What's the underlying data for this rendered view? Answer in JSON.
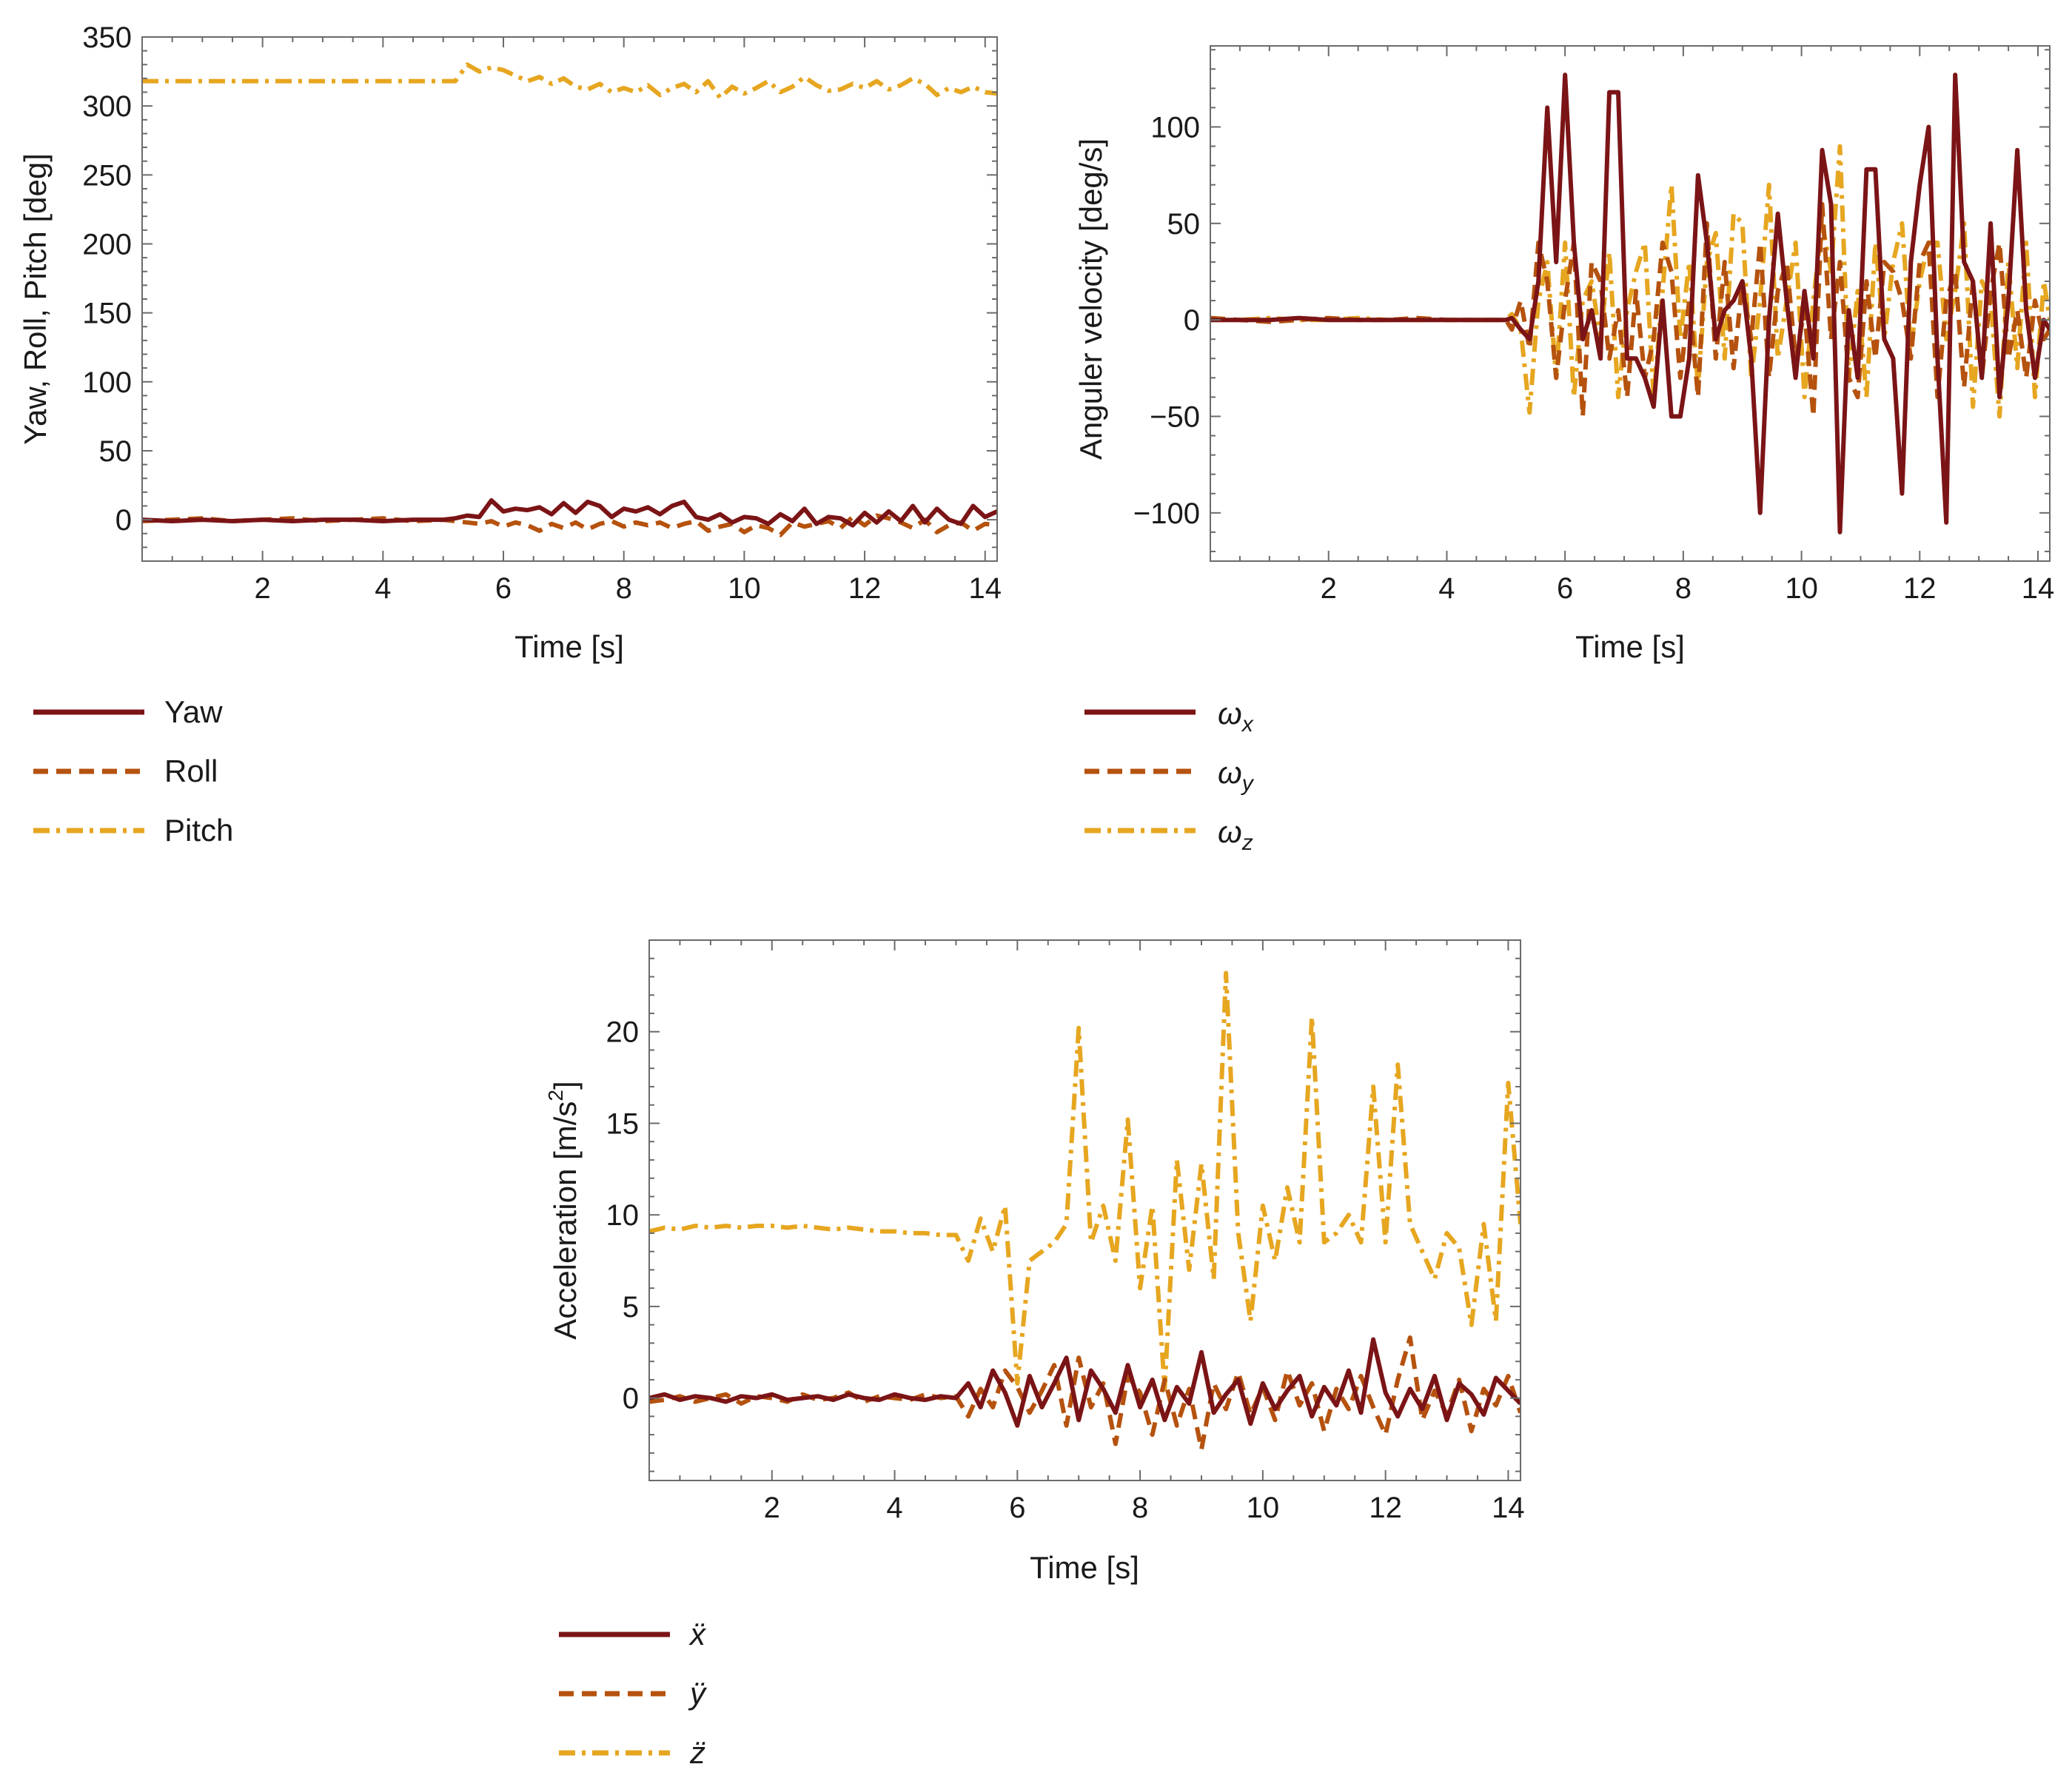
{
  "colors": {
    "s1": "#7b1416",
    "s2": "#b5520e",
    "s3": "#e6a620",
    "axis": "#6b6b6b"
  },
  "chart_data": [
    {
      "type": "line",
      "id": "attitude",
      "xlabel": "Time [s]",
      "ylabel": "Yaw, Roll, Pitch [deg]",
      "xlim": [
        0,
        14.2
      ],
      "ylim": [
        -30,
        350
      ],
      "xticks": [
        2,
        4,
        6,
        8,
        10,
        12,
        14
      ],
      "yticks": [
        0,
        50,
        100,
        150,
        200,
        250,
        300,
        350
      ],
      "x": [
        0,
        0.5,
        1,
        1.5,
        2,
        2.5,
        3,
        3.5,
        4,
        4.5,
        5,
        5.2,
        5.4,
        5.6,
        5.8,
        6,
        6.2,
        6.4,
        6.6,
        6.8,
        7,
        7.2,
        7.4,
        7.6,
        7.8,
        8,
        8.2,
        8.4,
        8.6,
        8.8,
        9,
        9.2,
        9.4,
        9.6,
        9.8,
        10,
        10.2,
        10.4,
        10.6,
        10.8,
        11,
        11.2,
        11.4,
        11.6,
        11.8,
        12,
        12.2,
        12.4,
        12.6,
        12.8,
        13,
        13.2,
        13.4,
        13.6,
        13.8,
        14,
        14.2
      ],
      "series": [
        {
          "name": "Yaw",
          "style": "solid",
          "values": [
            0,
            -1,
            0,
            -1,
            0,
            -1,
            0,
            0,
            -1,
            0,
            0,
            1,
            3,
            2,
            14,
            6,
            8,
            7,
            9,
            4,
            12,
            5,
            13,
            10,
            2,
            8,
            6,
            9,
            4,
            10,
            13,
            2,
            0,
            4,
            -2,
            2,
            1,
            -3,
            4,
            -1,
            8,
            -3,
            2,
            1,
            -4,
            5,
            -2,
            6,
            -1,
            10,
            -2,
            8,
            0,
            -3,
            10,
            2,
            6
          ]
        },
        {
          "name": "Roll",
          "style": "dashed",
          "values": [
            -1,
            0,
            1,
            -1,
            0,
            1,
            -1,
            0,
            1,
            -1,
            0,
            -1,
            -2,
            -3,
            -1,
            -5,
            -2,
            -4,
            -8,
            -3,
            -6,
            -2,
            -7,
            -3,
            -1,
            -5,
            -2,
            -4,
            -2,
            -6,
            -3,
            -1,
            -8,
            -5,
            -3,
            -9,
            -4,
            -6,
            -11,
            -2,
            -5,
            -3,
            -1,
            -6,
            2,
            -4,
            3,
            1,
            -2,
            -6,
            0,
            -9,
            -4,
            -2,
            -8,
            -3,
            -4
          ]
        },
        {
          "name": "Pitch",
          "style": "dashdot",
          "values": [
            318,
            318,
            318,
            318,
            318,
            318,
            318,
            318,
            318,
            318,
            318,
            318,
            330,
            325,
            328,
            326,
            322,
            318,
            321,
            316,
            320,
            314,
            312,
            316,
            310,
            313,
            310,
            315,
            308,
            313,
            316,
            310,
            318,
            306,
            314,
            309,
            313,
            318,
            310,
            314,
            321,
            315,
            311,
            312,
            316,
            313,
            318,
            312,
            315,
            320,
            316,
            308,
            313,
            310,
            314,
            310,
            309
          ]
        }
      ],
      "legend": [
        "Yaw",
        "Roll",
        "Pitch"
      ]
    },
    {
      "type": "line",
      "id": "angular-velocity",
      "xlabel": "Time [s]",
      "ylabel": "Anguler velocity [deg/s]",
      "xlim": [
        0,
        14.2
      ],
      "ylim": [
        -125,
        142
      ],
      "xticks": [
        2,
        4,
        6,
        8,
        10,
        12,
        14
      ],
      "yticks": [
        -100,
        -50,
        0,
        50,
        100
      ],
      "x": [
        0,
        0.5,
        1,
        1.5,
        2,
        2.5,
        3,
        3.5,
        4,
        4.5,
        5,
        5.1,
        5.25,
        5.4,
        5.55,
        5.7,
        5.85,
        6,
        6.15,
        6.3,
        6.45,
        6.6,
        6.75,
        6.9,
        7.05,
        7.2,
        7.35,
        7.5,
        7.65,
        7.8,
        7.95,
        8.1,
        8.25,
        8.4,
        8.55,
        8.7,
        8.85,
        9,
        9.15,
        9.3,
        9.45,
        9.6,
        9.75,
        9.9,
        10.05,
        10.2,
        10.35,
        10.5,
        10.65,
        10.8,
        10.95,
        11.1,
        11.25,
        11.4,
        11.55,
        11.7,
        11.85,
        12,
        12.15,
        12.3,
        12.45,
        12.6,
        12.75,
        12.9,
        13.05,
        13.2,
        13.35,
        13.5,
        13.65,
        13.8,
        13.95,
        14.1,
        14.2
      ],
      "series": [
        {
          "name": "ω_x",
          "legend_main": "ω",
          "legend_sub": "x",
          "style": "solid",
          "values": [
            0,
            0,
            0,
            1,
            0,
            0,
            0,
            0,
            0,
            0,
            0,
            1,
            -5,
            -10,
            20,
            110,
            30,
            127,
            40,
            -10,
            5,
            -20,
            118,
            118,
            -20,
            -20,
            -30,
            -45,
            10,
            -50,
            -50,
            -20,
            75,
            40,
            -10,
            5,
            10,
            20,
            -20,
            -100,
            0,
            55,
            10,
            -30,
            15,
            -20,
            88,
            60,
            -110,
            5,
            -30,
            78,
            78,
            -10,
            -20,
            -90,
            30,
            70,
            100,
            -20,
            -105,
            127,
            30,
            20,
            -30,
            50,
            -40,
            10,
            88,
            5,
            -30,
            0,
            -5
          ]
        },
        {
          "name": "ω_y",
          "legend_main": "ω",
          "legend_sub": "y",
          "style": "dashed",
          "values": [
            1,
            0,
            -1,
            0,
            1,
            0,
            0,
            1,
            0,
            0,
            0,
            -5,
            10,
            -15,
            40,
            20,
            -30,
            10,
            40,
            -50,
            30,
            20,
            -20,
            5,
            -40,
            15,
            -30,
            -10,
            40,
            25,
            -30,
            10,
            -40,
            50,
            -20,
            30,
            -25,
            20,
            -10,
            40,
            -30,
            15,
            30,
            -20,
            5,
            -50,
            60,
            -10,
            30,
            -30,
            -40,
            20,
            -20,
            30,
            25,
            10,
            -20,
            30,
            40,
            -40,
            10,
            25,
            -35,
            20,
            -30,
            15,
            40,
            -20,
            5,
            -30,
            10,
            -10,
            -5
          ]
        },
        {
          "name": "ω_z",
          "legend_main": "ω",
          "legend_sub": "z",
          "style": "dashdot",
          "values": [
            0,
            0,
            1,
            0,
            0,
            1,
            0,
            0,
            0,
            0,
            0,
            3,
            -5,
            -48,
            10,
            30,
            -30,
            40,
            -40,
            10,
            20,
            -10,
            35,
            -40,
            5,
            25,
            40,
            -40,
            15,
            70,
            -10,
            30,
            -35,
            30,
            45,
            -20,
            55,
            50,
            -30,
            10,
            70,
            -20,
            10,
            40,
            -40,
            10,
            50,
            25,
            90,
            -30,
            15,
            -40,
            40,
            -10,
            30,
            50,
            -15,
            20,
            40,
            40,
            -10,
            15,
            50,
            -45,
            20,
            10,
            -50,
            30,
            -25,
            40,
            -40,
            20,
            0
          ]
        }
      ],
      "legend": [
        "ω_x",
        "ω_y",
        "ω_z"
      ]
    },
    {
      "type": "line",
      "id": "acceleration",
      "xlabel": "Time [s]",
      "ylabel_main": "Acceleration [m/s",
      "ylabel_sup": "2",
      "ylabel_end": "]",
      "xlim": [
        0,
        14.2
      ],
      "ylim": [
        -4.5,
        25
      ],
      "xticks": [
        2,
        4,
        6,
        8,
        10,
        12,
        14
      ],
      "yticks": [
        0,
        5,
        10,
        15,
        20
      ],
      "x": [
        0,
        0.25,
        0.5,
        0.75,
        1,
        1.25,
        1.5,
        1.75,
        2,
        2.25,
        2.5,
        2.75,
        3,
        3.25,
        3.5,
        3.75,
        4,
        4.25,
        4.5,
        4.75,
        5,
        5.2,
        5.4,
        5.6,
        5.8,
        6,
        6.2,
        6.4,
        6.6,
        6.8,
        7,
        7.2,
        7.4,
        7.6,
        7.8,
        8,
        8.2,
        8.4,
        8.6,
        8.8,
        9,
        9.2,
        9.4,
        9.6,
        9.8,
        10,
        10.2,
        10.4,
        10.6,
        10.8,
        11,
        11.2,
        11.4,
        11.6,
        11.8,
        12,
        12.2,
        12.4,
        12.6,
        12.8,
        13,
        13.2,
        13.4,
        13.6,
        13.8,
        14,
        14.2
      ],
      "series": [
        {
          "name": "ẍ",
          "style": "solid",
          "values": [
            0,
            0.2,
            -0.1,
            0.1,
            0,
            -0.2,
            0.1,
            0,
            0.2,
            -0.1,
            0,
            0.1,
            -0.1,
            0.2,
            0,
            -0.1,
            0.2,
            0,
            -0.1,
            0.1,
            0,
            0.8,
            -0.5,
            1.5,
            0.3,
            -1.5,
            1.2,
            -0.5,
            0.8,
            2.2,
            -1.2,
            1.5,
            0.5,
            -0.8,
            1.8,
            -0.5,
            1.0,
            -1.2,
            0.6,
            -0.3,
            2.5,
            -0.8,
            0.2,
            1.0,
            -1.4,
            0.8,
            -0.6,
            0.4,
            1.2,
            -1.0,
            0.6,
            -0.4,
            1.5,
            -0.8,
            3.2,
            0.3,
            -1.0,
            0.5,
            -0.6,
            1.2,
            -1.2,
            0.8,
            0.2,
            -0.9,
            1.1,
            0.4,
            -0.3
          ]
        },
        {
          "name": "ÿ",
          "style": "dashed",
          "values": [
            -0.2,
            -0.1,
            0.1,
            -0.2,
            0,
            0.2,
            -0.3,
            0.1,
            0,
            -0.2,
            0.2,
            -0.1,
            0,
            0.3,
            -0.2,
            0.1,
            0,
            -0.1,
            0.2,
            0,
            0.1,
            -1.0,
            0.5,
            -0.5,
            1.5,
            0.6,
            -0.8,
            0.4,
            1.8,
            -1.5,
            2.2,
            -0.5,
            0.8,
            -2.5,
            1.2,
            0.3,
            -2.0,
            1.0,
            -1.5,
            0.5,
            -2.8,
            0.8,
            -0.6,
            1.4,
            -0.9,
            0.6,
            -1.2,
            1.5,
            -0.4,
            0.8,
            -1.8,
            0.5,
            -0.6,
            1.2,
            -0.5,
            -2.0,
            1.0,
            3.3,
            -1.2,
            0.4,
            -0.9,
            1.0,
            -1.8,
            0.5,
            -0.4,
            1.2,
            -0.8
          ]
        },
        {
          "name": "z̈",
          "style": "dashdot",
          "values": [
            9.1,
            9.3,
            9.2,
            9.4,
            9.3,
            9.4,
            9.3,
            9.4,
            9.4,
            9.3,
            9.4,
            9.3,
            9.2,
            9.3,
            9.2,
            9.1,
            9.1,
            9.0,
            9.0,
            8.9,
            8.9,
            7.5,
            9.8,
            8.0,
            10.5,
            0.8,
            7.5,
            8.0,
            8.5,
            9.5,
            20.2,
            8.5,
            10.5,
            7.5,
            15.2,
            6.0,
            10.5,
            0.5,
            13.0,
            7.0,
            12.8,
            6.5,
            23.2,
            9.0,
            4.2,
            10.5,
            7.5,
            11.5,
            8.5,
            20.8,
            8.5,
            9.0,
            10.0,
            8.5,
            17.0,
            8.5,
            18.2,
            9.5,
            8.0,
            6.5,
            9.0,
            8.2,
            4.0,
            9.5,
            4.2,
            17.2,
            9.5
          ]
        }
      ],
      "legend": [
        "ẍ",
        "ÿ",
        "z̈"
      ]
    }
  ]
}
